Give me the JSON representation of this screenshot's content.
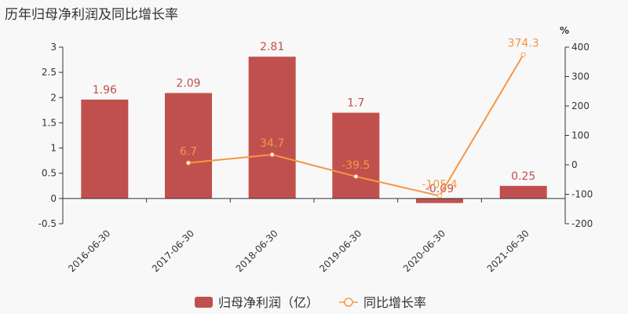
{
  "title": "历年归母净利润及同比增长率",
  "legend": {
    "bar_label": "归母净利润（亿）",
    "line_label": "同比增长率"
  },
  "colors": {
    "bar": "#c0504d",
    "line": "#f79646",
    "axis": "#333333",
    "bar_label": "#c0504d",
    "line_label": "#f79646"
  },
  "chart_data": {
    "type": "bar+line",
    "title": "历年归母净利润及同比增长率",
    "categories": [
      "2016-06-30",
      "2017-06-30",
      "2018-06-30",
      "2019-06-30",
      "2020-06-30",
      "2021-06-30"
    ],
    "series": [
      {
        "name": "归母净利润（亿）",
        "type": "bar",
        "axis": "left",
        "values": [
          1.96,
          2.09,
          2.81,
          1.7,
          -0.09,
          0.25
        ]
      },
      {
        "name": "同比增长率",
        "type": "line",
        "axis": "right",
        "values": [
          null,
          6.7,
          34.7,
          -39.5,
          -105.4,
          374.3
        ]
      }
    ],
    "left_axis": {
      "ticks": [
        "3",
        "2.5",
        "2",
        "1.5",
        "1",
        "0.5",
        "0",
        "-0.5"
      ],
      "ylim": [
        -0.5,
        3
      ]
    },
    "right_axis": {
      "unit": "%",
      "ticks": [
        "400",
        "300",
        "200",
        "100",
        "0",
        "-100",
        "-200"
      ],
      "ylim": [
        -200,
        400
      ]
    },
    "legend_position": "bottom"
  }
}
